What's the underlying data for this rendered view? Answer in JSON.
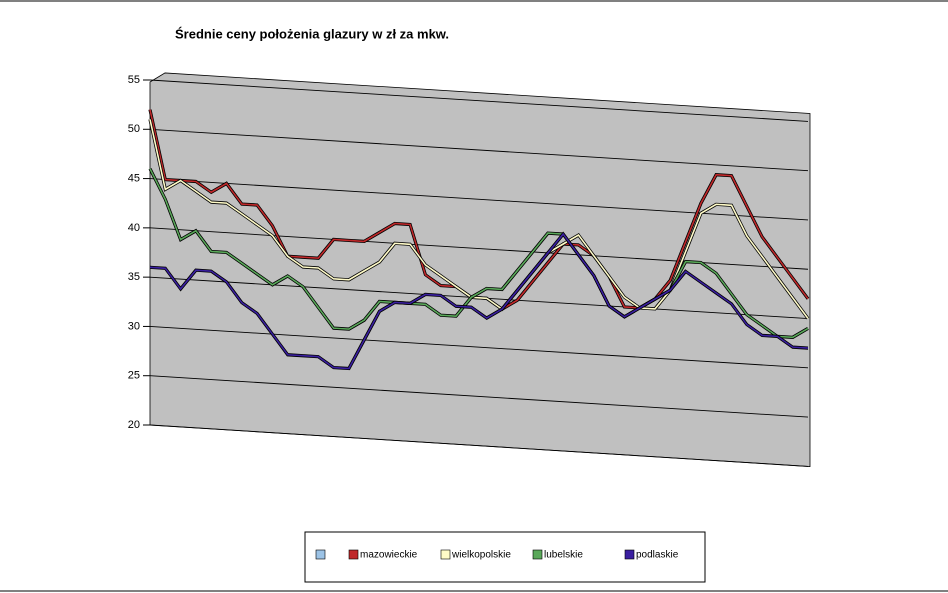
{
  "chart_data": {
    "type": "line",
    "title": "Średnie ceny położenia glazury w zł za mkw.",
    "categories": [
      null,
      null,
      null,
      null,
      null,
      null,
      null,
      null,
      null,
      null,
      null,
      null,
      null,
      null,
      null,
      null,
      null,
      null,
      null,
      null,
      null,
      null,
      null,
      null,
      null,
      null,
      null,
      null,
      null,
      null,
      null,
      null,
      null,
      null,
      null,
      null,
      null,
      null,
      null,
      null,
      null,
      null,
      null,
      null
    ],
    "ylim": [
      20,
      55
    ],
    "yticks": [
      20,
      25,
      30,
      35,
      40,
      45,
      50,
      55
    ],
    "grid": true,
    "series": [
      {
        "name": "mazowieckie",
        "color": "#c0282a",
        "values": [
          52,
          45,
          45,
          45,
          44,
          45,
          43,
          43,
          41,
          38,
          38,
          38,
          40,
          40,
          40,
          41,
          42,
          42,
          37,
          36,
          36,
          35,
          35,
          34,
          35,
          37,
          39,
          41,
          41,
          40,
          38,
          35,
          35,
          36,
          38,
          42,
          46,
          49,
          49,
          46,
          43,
          41,
          39,
          37
        ]
      },
      {
        "name": "wielkopolskie",
        "color": "#fffbc8",
        "values": [
          51,
          44,
          45,
          44,
          43,
          43,
          42,
          41,
          40,
          38,
          37,
          37,
          36,
          36,
          37,
          38,
          40,
          40,
          38,
          37,
          36,
          35,
          35,
          34,
          36,
          38,
          40,
          41,
          42,
          40,
          38,
          36,
          35,
          35,
          37,
          41,
          45,
          46,
          46,
          43,
          41,
          39,
          37,
          35
        ]
      },
      {
        "name": "lubelskie",
        "color": "#5aa85a",
        "values": [
          46,
          43,
          39,
          40,
          38,
          38,
          37,
          36,
          35,
          36,
          35,
          33,
          31,
          31,
          32,
          34,
          34,
          34,
          34,
          33,
          33,
          35,
          36,
          36,
          38,
          40,
          42,
          42,
          40,
          38,
          35,
          34,
          35,
          36,
          37,
          40,
          40,
          39,
          37,
          35,
          34,
          33,
          33,
          34
        ]
      },
      {
        "name": "podlaskie",
        "color": "#3a1fa0",
        "values": [
          36,
          36,
          34,
          36,
          36,
          35,
          33,
          32,
          30,
          28,
          28,
          28,
          27,
          27,
          30,
          33,
          34,
          34,
          35,
          35,
          34,
          34,
          33,
          34,
          36,
          38,
          40,
          42,
          40,
          38,
          35,
          34,
          35,
          36,
          37,
          39,
          38,
          37,
          36,
          34,
          33,
          33,
          32,
          32
        ]
      }
    ]
  }
}
